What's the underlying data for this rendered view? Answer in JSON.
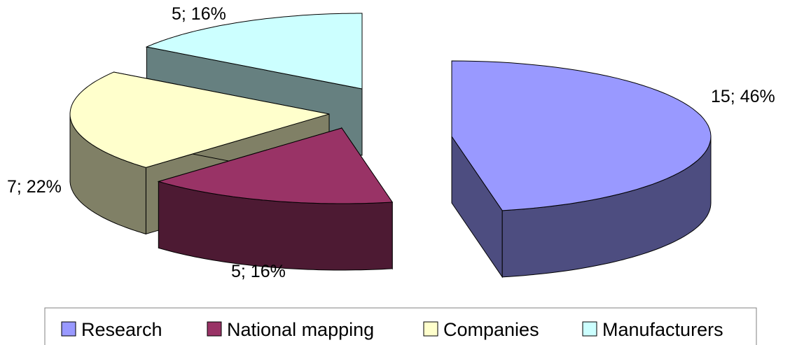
{
  "chart_data": {
    "type": "pie",
    "variant": "3d-exploded",
    "categories": [
      "Research",
      "National mapping",
      "Companies",
      "Manufacturers"
    ],
    "values": [
      15,
      5,
      7,
      5
    ],
    "percents": [
      46,
      16,
      22,
      16
    ],
    "data_labels": [
      "15; 46%",
      "5; 16%",
      "7; 22%",
      "5; 16%"
    ],
    "colors": {
      "Research": "#9999ff",
      "National mapping": "#993366",
      "Companies": "#ffffcc",
      "Manufacturers": "#ccffff"
    },
    "legend": {
      "position": "bottom",
      "items": [
        "Research",
        "National mapping",
        "Companies",
        "Manufacturers"
      ]
    }
  }
}
